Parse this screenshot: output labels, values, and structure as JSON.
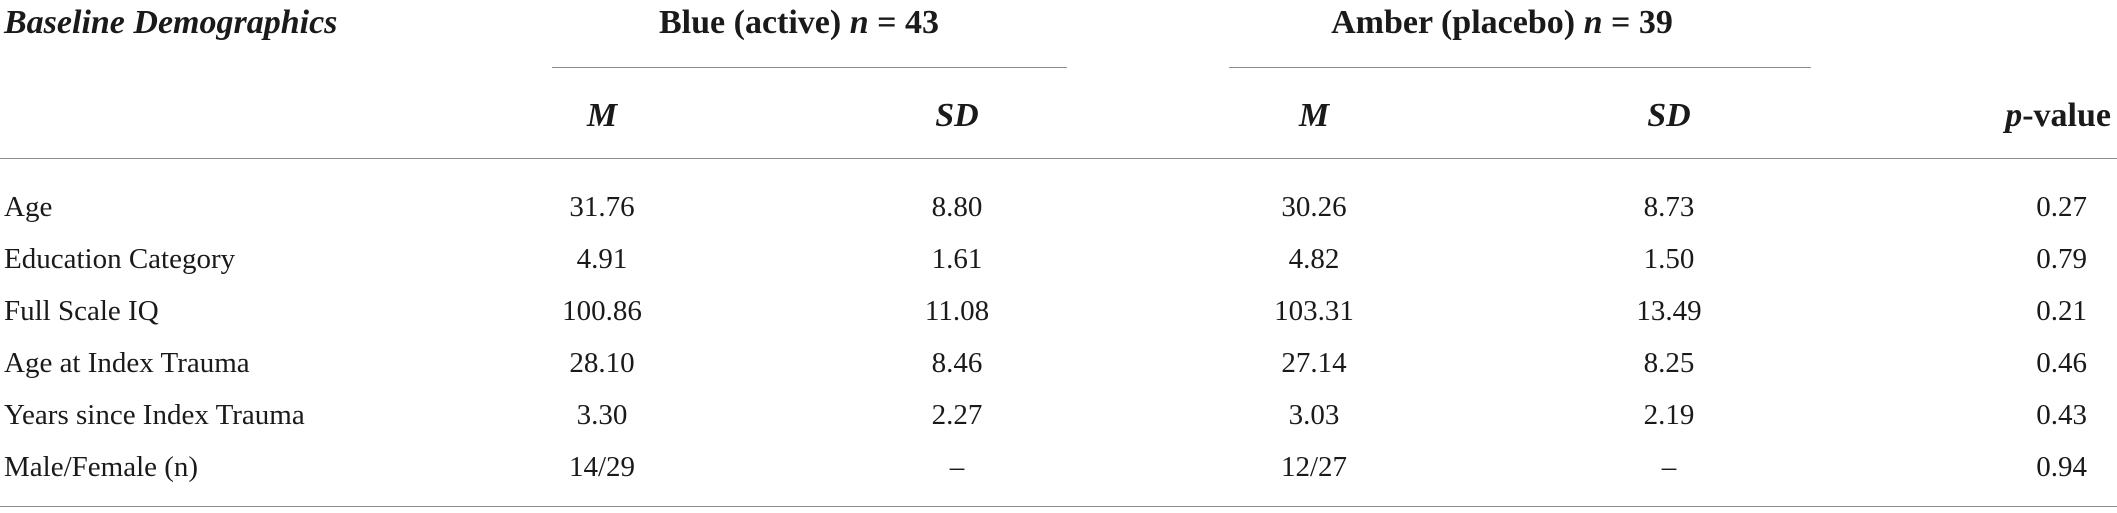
{
  "table": {
    "title": "Baseline Demographics",
    "groups": [
      {
        "label": "Blue (active)",
        "n_label": "n",
        "eq": " = 43"
      },
      {
        "label": "Amber (placebo)",
        "n_label": "n",
        "eq": " = 39"
      }
    ],
    "subheaders": {
      "m": "M",
      "sd": "SD",
      "p_italic": "p",
      "p_rest": "-value"
    },
    "rows": [
      {
        "label": "Age",
        "blue_m": "31.76",
        "blue_sd": "8.80",
        "amber_m": "30.26",
        "amber_sd": "8.73",
        "p": "0.27"
      },
      {
        "label": "Education Category",
        "blue_m": "4.91",
        "blue_sd": "1.61",
        "amber_m": "4.82",
        "amber_sd": "1.50",
        "p": "0.79"
      },
      {
        "label": "Full Scale IQ",
        "blue_m": "100.86",
        "blue_sd": "11.08",
        "amber_m": "103.31",
        "amber_sd": "13.49",
        "p": "0.21"
      },
      {
        "label": "Age at Index Trauma",
        "blue_m": "28.10",
        "blue_sd": "8.46",
        "amber_m": "27.14",
        "amber_sd": "8.25",
        "p": "0.46"
      },
      {
        "label": "Years since Index Trauma",
        "blue_m": "3.30",
        "blue_sd": "2.27",
        "amber_m": "3.03",
        "amber_sd": "2.19",
        "p": "0.43"
      },
      {
        "label": "Male/Female (n)",
        "blue_m": "14/29",
        "blue_sd": "–",
        "amber_m": "12/27",
        "amber_sd": "–",
        "p": "0.94"
      }
    ]
  }
}
